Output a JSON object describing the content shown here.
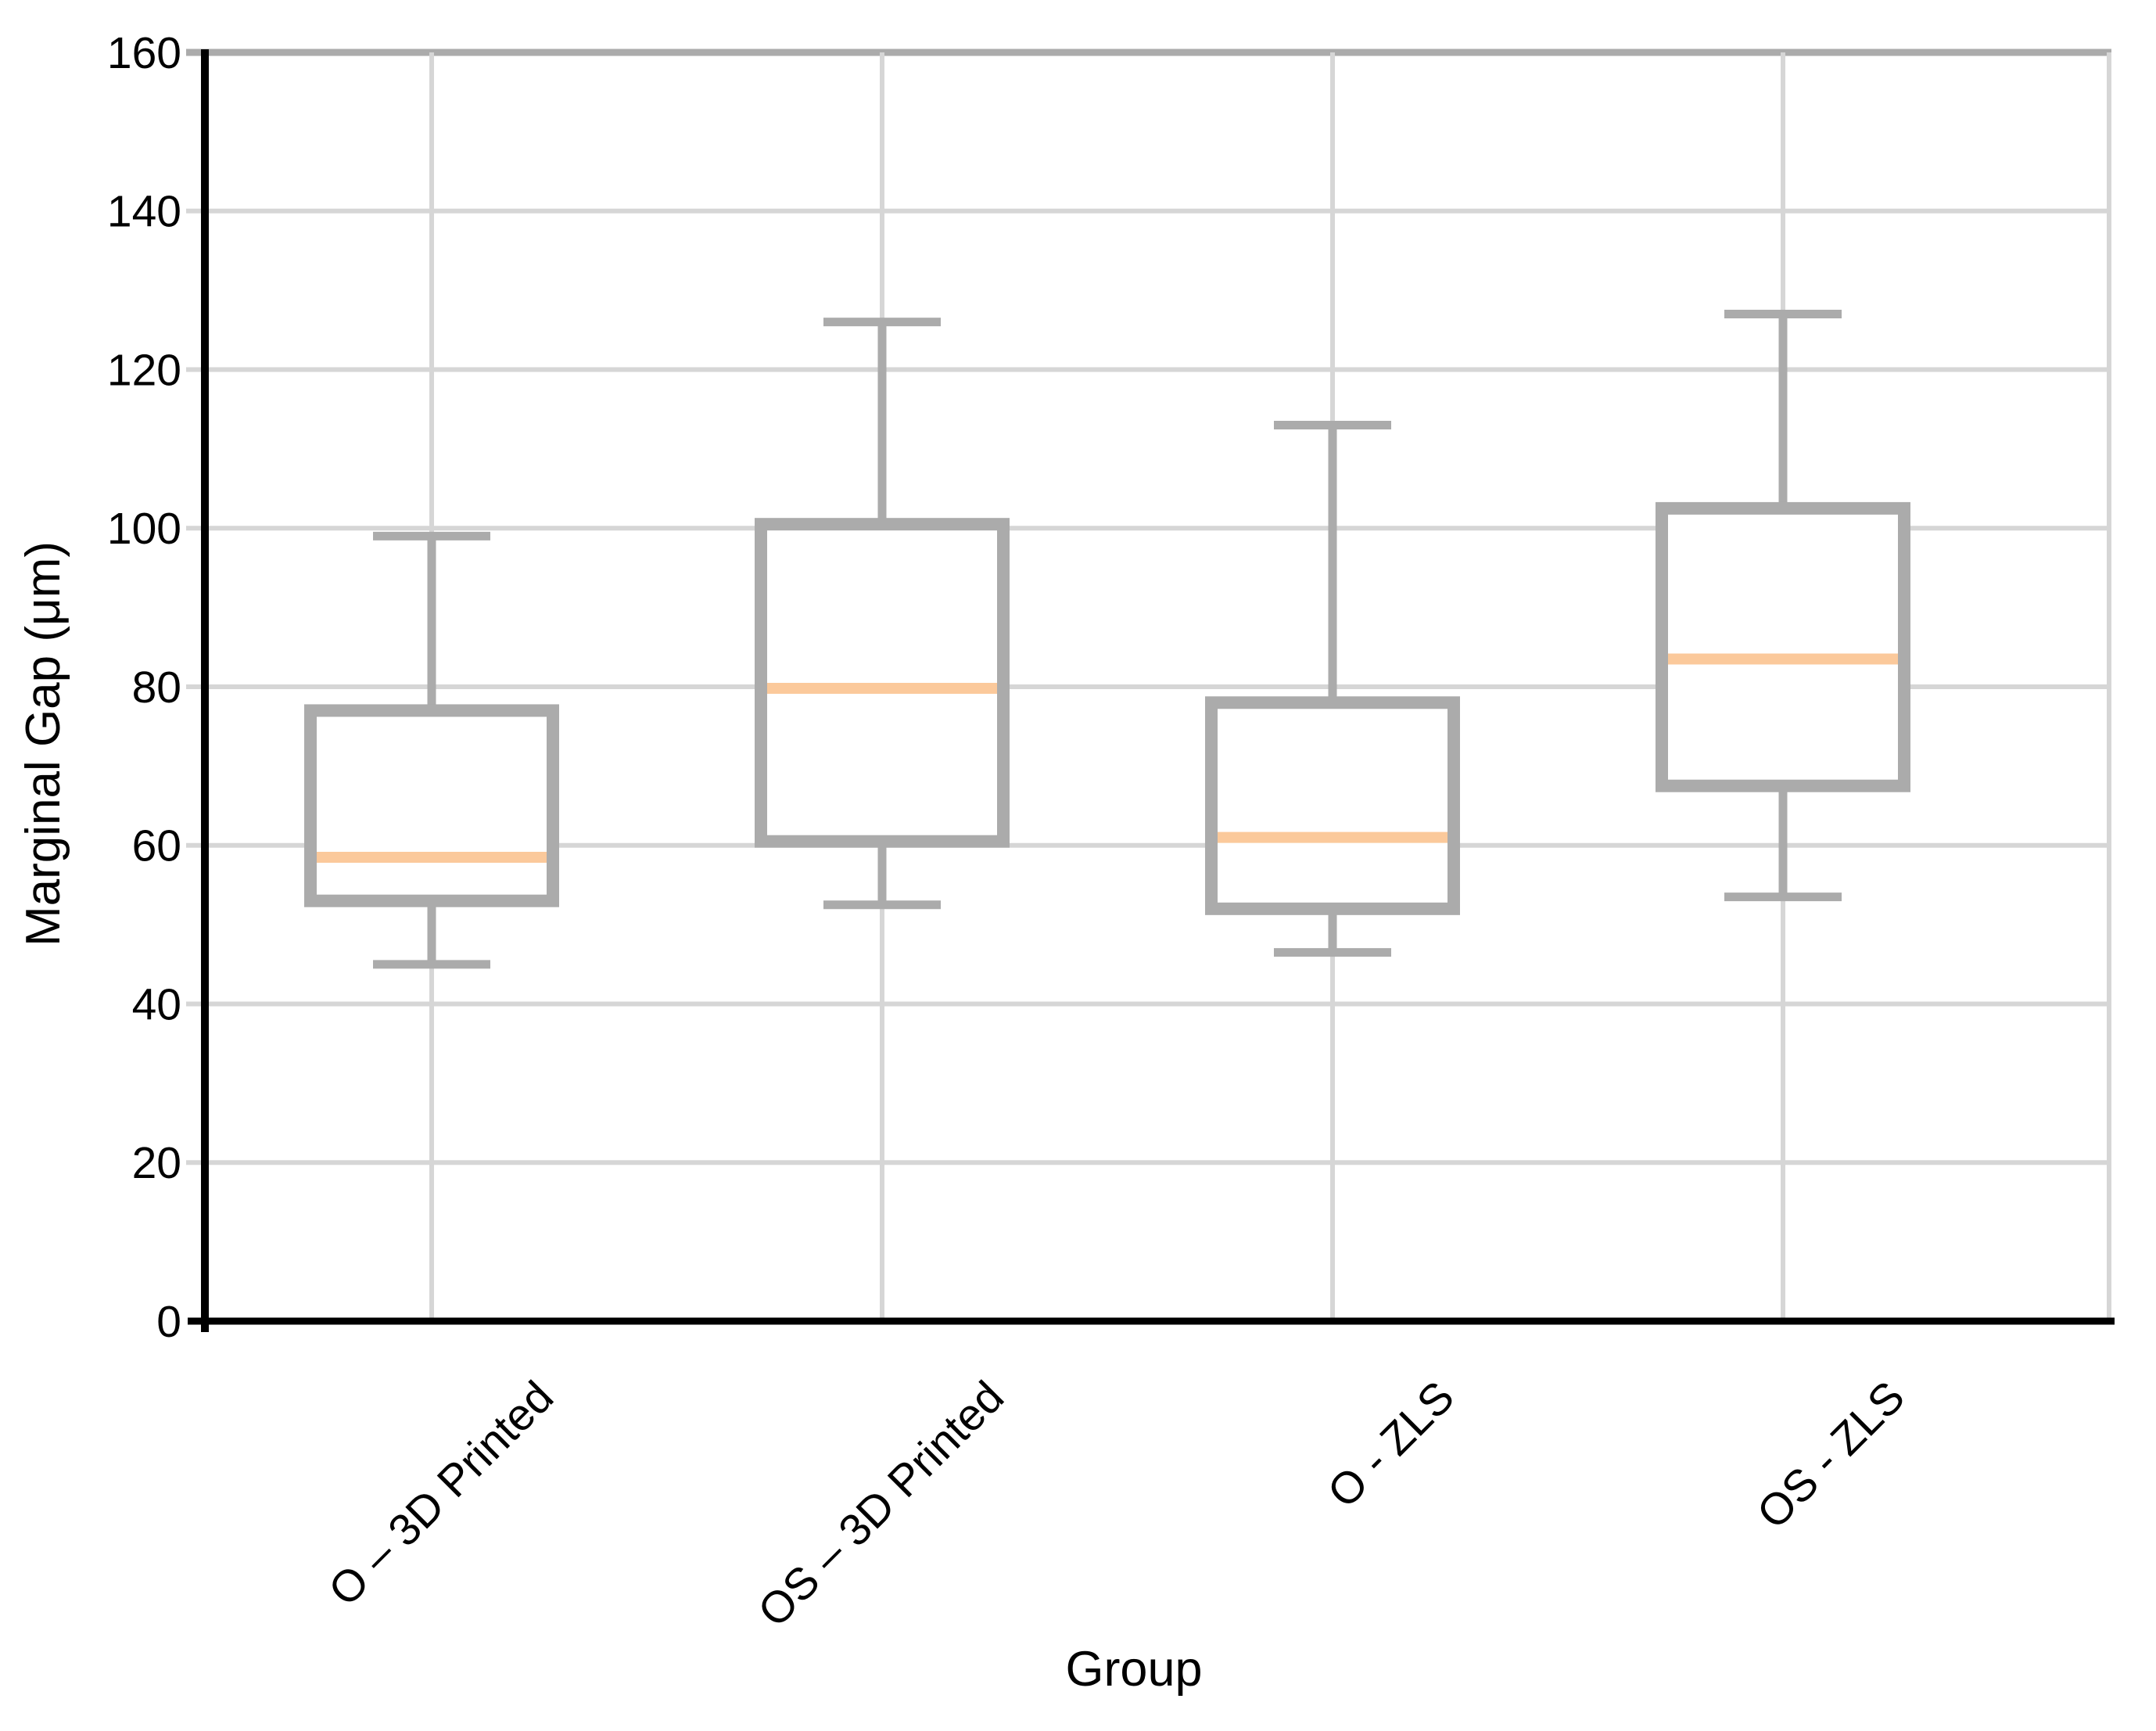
{
  "chart_data": {
    "type": "box",
    "title": "",
    "xlabel": "Group",
    "ylabel": "Marginal Gap (μm)",
    "ylim": [
      0,
      160
    ],
    "y_tick_step": 20,
    "y_ticks": [
      0,
      20,
      40,
      60,
      80,
      100,
      120,
      140,
      160
    ],
    "grid": true,
    "legend_position": "none",
    "categories": [
      "O – 3D Printed",
      "OS – 3D Printed",
      "O - ZLS",
      "OS - ZLS"
    ],
    "series": [
      {
        "name": "O – 3D Printed",
        "min": 45,
        "q1": 53,
        "median": 58.5,
        "q3": 77,
        "max": 99
      },
      {
        "name": "OS – 3D Printed",
        "min": 52.5,
        "q1": 60.5,
        "median": 79.8,
        "q3": 100.5,
        "max": 126
      },
      {
        "name": "O - ZLS",
        "min": 46.5,
        "q1": 52,
        "median": 61,
        "q3": 78,
        "max": 113
      },
      {
        "name": "OS - ZLS",
        "min": 53.5,
        "q1": 67.5,
        "median": 83.5,
        "q3": 102.5,
        "max": 127
      }
    ],
    "colors": {
      "box_stroke": "#ABABAB",
      "box_fill": "#FFFFFF",
      "median": "#FBC99B",
      "gridline": "#D6D6D6",
      "top_border": "#ABABAB",
      "axis": "#000000",
      "text": "#000000"
    }
  }
}
